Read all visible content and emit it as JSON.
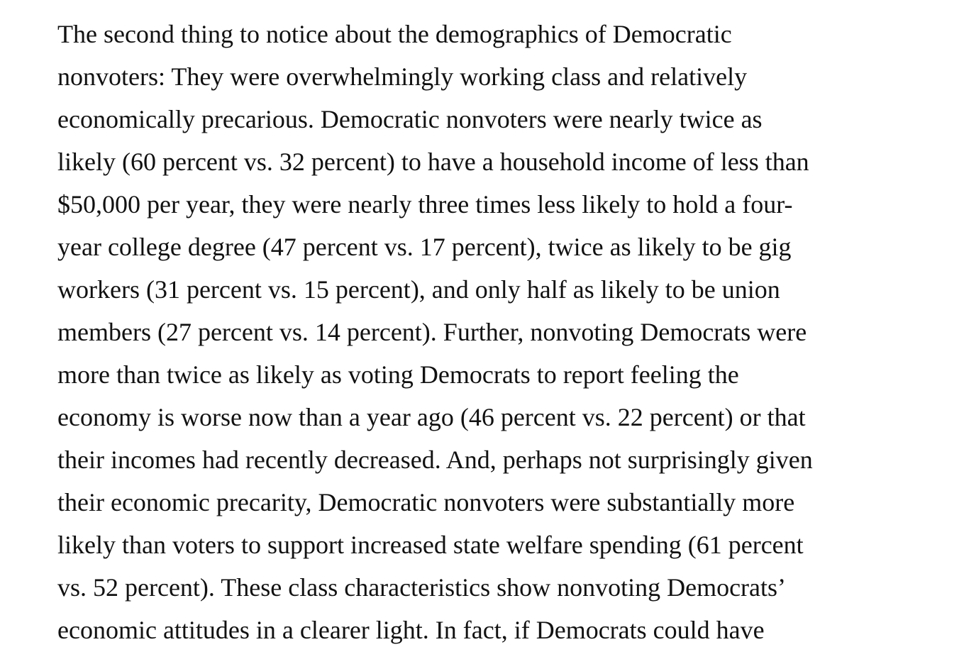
{
  "paragraph": {
    "lines": [
      "The second thing to notice about the demographics of Democratic",
      "nonvoters: They were overwhelmingly working class and relatively",
      "economically precarious. Democratic nonvoters were nearly twice as",
      "likely (60 percent vs. 32 percent) to have a household income of less than",
      "$50,000 per year, they were nearly three times less likely to hold a four-",
      "year college degree (47 percent vs. 17 percent), twice as likely to be gig",
      "workers (31 percent vs. 15 percent), and only half as likely to be union",
      "members (27 percent vs. 14 percent). Further, nonvoting Democrats were",
      "more than twice as likely as voting Democrats to report feeling the",
      "economy is worse now than a year ago (46 percent vs. 22 percent) or that",
      "their incomes had recently decreased. And, perhaps not surprisingly given",
      "their economic precarity, Democratic nonvoters were substantially more",
      "likely than voters to support increased state welfare spending (61 percent",
      "vs. 52 percent). These class characteristics show nonvoting Democrats’",
      "economic attitudes in a clearer light. In fact, if Democrats could have"
    ]
  }
}
